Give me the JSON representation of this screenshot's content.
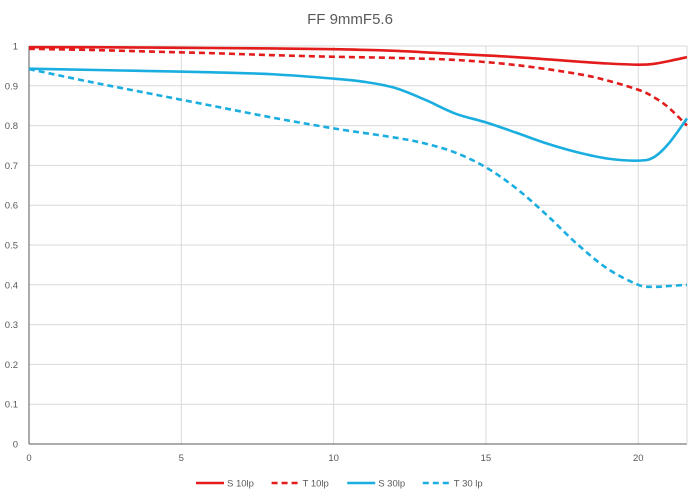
{
  "chart_data": {
    "type": "line",
    "title": "FF  9mmF5.6",
    "xlabel": "",
    "ylabel": "",
    "xlim": [
      0,
      21.6
    ],
    "ylim": [
      0,
      1
    ],
    "x_ticks": [
      0,
      5,
      10,
      15,
      20
    ],
    "y_ticks": [
      0,
      0.1,
      0.2,
      0.3,
      0.4,
      0.5,
      0.6,
      0.7,
      0.8,
      0.9,
      1
    ],
    "x_tick_labels": [
      "0",
      "5",
      "10",
      "15",
      "20"
    ],
    "y_tick_labels": [
      "0",
      "0.1",
      "0.2",
      "0.3",
      "0.4",
      "0.5",
      "0.6",
      "0.7",
      "0.8",
      "0.9",
      "1"
    ],
    "grid": true,
    "legend_position": "bottom",
    "series": [
      {
        "name": "S 10lp",
        "color": "#e31b1b",
        "dash": "solid",
        "x": [
          0,
          2,
          4,
          6,
          8,
          10,
          12,
          14,
          16,
          18,
          19,
          20,
          20.5,
          21,
          21.6
        ],
        "y": [
          0.997,
          0.997,
          0.996,
          0.995,
          0.994,
          0.992,
          0.988,
          0.98,
          0.972,
          0.961,
          0.956,
          0.953,
          0.955,
          0.962,
          0.972
        ]
      },
      {
        "name": "T 10lp",
        "color": "#e31b1b",
        "dash": "dashed",
        "x": [
          0,
          2,
          4,
          6,
          8,
          10,
          12,
          14,
          16,
          18,
          19,
          20,
          20.5,
          21,
          21.6
        ],
        "y": [
          0.993,
          0.99,
          0.986,
          0.982,
          0.977,
          0.973,
          0.97,
          0.965,
          0.952,
          0.93,
          0.913,
          0.89,
          0.872,
          0.845,
          0.8
        ]
      },
      {
        "name": "S 30lp",
        "color": "#1aaee0",
        "dash": "solid",
        "x": [
          0,
          2,
          4,
          6,
          8,
          10,
          11,
          12,
          13,
          14,
          15,
          16,
          17,
          18,
          19,
          20,
          20.5,
          21,
          21.6
        ],
        "y": [
          0.943,
          0.94,
          0.937,
          0.934,
          0.929,
          0.918,
          0.91,
          0.895,
          0.865,
          0.83,
          0.808,
          0.782,
          0.755,
          0.733,
          0.717,
          0.712,
          0.72,
          0.755,
          0.818
        ]
      },
      {
        "name": "T 30 lp",
        "color": "#1aaee0",
        "dash": "dashed",
        "x": [
          0,
          2,
          4,
          6,
          8,
          10,
          12,
          13,
          14,
          15,
          16,
          17,
          18,
          19,
          20,
          20.5,
          21,
          21.6
        ],
        "y": [
          0.942,
          0.91,
          0.88,
          0.85,
          0.82,
          0.793,
          0.77,
          0.755,
          0.732,
          0.695,
          0.642,
          0.575,
          0.502,
          0.44,
          0.4,
          0.395,
          0.397,
          0.4
        ]
      }
    ]
  }
}
